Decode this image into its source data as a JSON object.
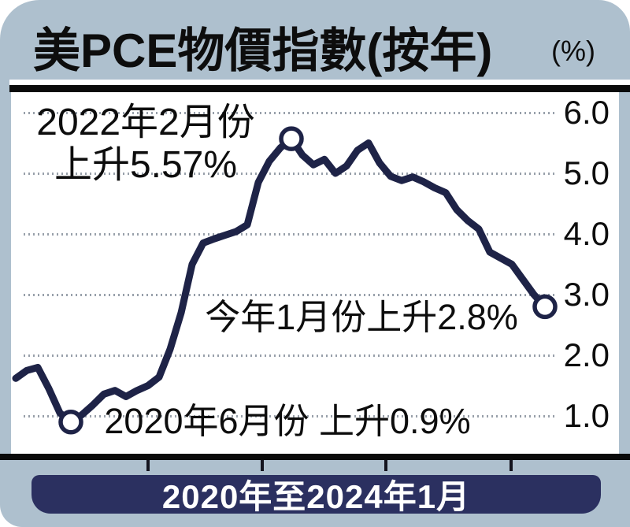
{
  "title": {
    "text": "美PCE物價指數(按年)",
    "unit": "(%)"
  },
  "chart_data": {
    "type": "line",
    "title": "美PCE物價指數(按年)",
    "ylabel": "%",
    "y_ticks": [
      "6.0",
      "5.0",
      "4.0",
      "3.0",
      "2.0",
      "1.0"
    ],
    "ylim": [
      0.4,
      6.4
    ],
    "x_axis_label": "2020年至2024年1月",
    "grid": "horizontal-dotted",
    "legend": "none",
    "series": [
      {
        "name": "美PCE物價指數按年升幅(%)",
        "values": [
          1.62,
          1.75,
          1.8,
          1.45,
          1.05,
          0.9,
          1.02,
          1.18,
          1.36,
          1.42,
          1.32,
          1.42,
          1.5,
          1.64,
          2.1,
          2.7,
          3.5,
          3.85,
          3.92,
          3.98,
          4.04,
          4.15,
          4.85,
          5.2,
          5.42,
          5.57,
          5.3,
          5.14,
          5.23,
          5.0,
          5.12,
          5.38,
          5.5,
          5.17,
          4.95,
          4.88,
          4.94,
          4.86,
          4.76,
          4.68,
          4.4,
          4.22,
          4.08,
          3.7,
          3.6,
          3.5,
          3.25,
          3.0,
          2.8
        ]
      }
    ],
    "markers": [
      {
        "point_index": 5,
        "value": 0.9,
        "label": "2020年6月份 上升0.9%"
      },
      {
        "point_index": 25,
        "value": 5.57,
        "label": "2022年2月份 上升5.57%"
      },
      {
        "point_index": 48,
        "value": 2.8,
        "label": "今年1月份上升2.8%"
      }
    ]
  },
  "annotations": {
    "peak_line1": "2022年2月份",
    "peak_line2": "上升5.57%",
    "latest": "今年1月份上升2.8%",
    "low": "2020年6月份 上升0.9%"
  },
  "footer": {
    "label": "2020年至2024年1月"
  },
  "colors": {
    "card_bg": "#aec0ce",
    "line": "#1e2347",
    "marker_fill": "#ffffff",
    "grid": "#98a0aa",
    "bar_bg": "#2b3060",
    "bar_text": "#ffffff",
    "text": "#111111"
  }
}
